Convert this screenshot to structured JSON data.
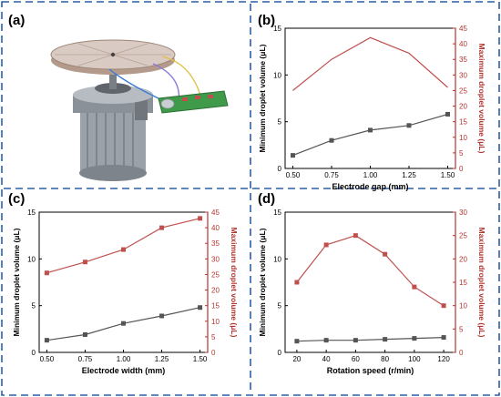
{
  "panel_labels": {
    "a": "(a)",
    "b": "(b)",
    "c": "(c)",
    "d": "(d)"
  },
  "colors": {
    "frame": "#2c5fa8",
    "left_series": "#555555",
    "right_series": "#c0504d",
    "right_axis": "#b03530"
  },
  "chart_data": [
    {
      "panel": "(b)",
      "type": "line",
      "xlabel": "Electrode gap (mm)",
      "x": [
        0.5,
        0.75,
        1.0,
        1.25,
        1.5
      ],
      "xticks": [
        "0.50",
        "0.75",
        "1.00",
        "1.25",
        "1.50"
      ],
      "xlim": [
        0.45,
        1.55
      ],
      "ylabel_left": "Minimum droplet volume (μL)",
      "ylim_left": [
        0,
        15
      ],
      "yticks_left": [
        0,
        5,
        10,
        15
      ],
      "ylabel_right": "Maximum droplet volume (μL)",
      "ylim_right": [
        0,
        45
      ],
      "yticks_right": [
        0,
        5,
        10,
        15,
        20,
        25,
        30,
        35,
        40,
        45
      ],
      "series": [
        {
          "axis": "left",
          "marker": "square",
          "values": [
            1.4,
            3.0,
            4.1,
            4.6,
            5.8
          ]
        },
        {
          "axis": "right",
          "marker": "none",
          "values": [
            25,
            35,
            42,
            37,
            26
          ]
        }
      ]
    },
    {
      "panel": "(c)",
      "type": "line",
      "xlabel": "Electrode width (mm)",
      "x": [
        0.5,
        0.75,
        1.0,
        1.25,
        1.5
      ],
      "xticks": [
        "0.50",
        "0.75",
        "1.00",
        "1.25",
        "1.50"
      ],
      "xlim": [
        0.45,
        1.55
      ],
      "ylabel_left": "Minimum droplet volume (μL)",
      "ylim_left": [
        0,
        15
      ],
      "yticks_left": [
        0,
        5,
        10,
        15
      ],
      "ylabel_right": "Maximum droplet volume (μL)",
      "ylim_right": [
        0,
        45
      ],
      "yticks_right": [
        0,
        5,
        10,
        15,
        20,
        25,
        30,
        35,
        40,
        45
      ],
      "series": [
        {
          "axis": "left",
          "marker": "square",
          "values": [
            1.3,
            1.9,
            3.1,
            3.9,
            4.8
          ]
        },
        {
          "axis": "right",
          "marker": "square",
          "values": [
            25.5,
            29,
            33,
            40,
            43
          ]
        }
      ]
    },
    {
      "panel": "(d)",
      "type": "line",
      "xlabel": "Rotation speed (r/min)",
      "x": [
        20,
        40,
        60,
        80,
        100,
        120
      ],
      "xticks": [
        "20",
        "40",
        "60",
        "80",
        "100",
        "120"
      ],
      "xlim": [
        12,
        128
      ],
      "ylabel_left": "Minimum droplet volume (μL)",
      "ylim_left": [
        0,
        15
      ],
      "yticks_left": [
        0,
        5,
        10,
        15
      ],
      "ylabel_right": "Maximum droplet volume (μL)",
      "ylim_right": [
        0,
        30
      ],
      "yticks_right": [
        0,
        5,
        10,
        15,
        20,
        25,
        30
      ],
      "series": [
        {
          "axis": "left",
          "marker": "square",
          "values": [
            1.2,
            1.3,
            1.3,
            1.4,
            1.5,
            1.6
          ]
        },
        {
          "axis": "right",
          "marker": "square",
          "values": [
            15,
            23,
            25,
            21,
            14,
            10
          ]
        }
      ]
    }
  ]
}
